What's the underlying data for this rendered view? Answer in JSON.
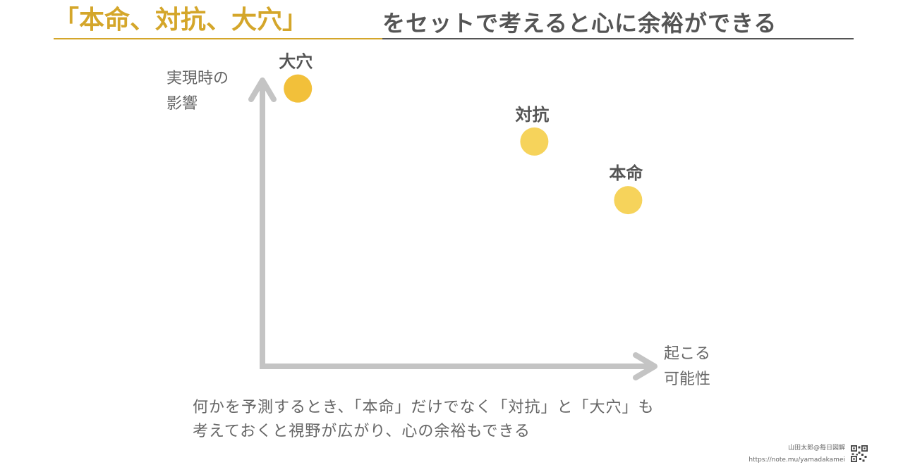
{
  "title": {
    "highlight": "「本命、対抗、大穴」",
    "rest": "をセットで考えると心に余裕ができる"
  },
  "axes": {
    "y_label_lines": [
      "実現時の",
      "影響"
    ],
    "x_label_lines": [
      "起こる",
      "可能性"
    ]
  },
  "chart_data": {
    "type": "scatter",
    "xlabel": "起こる可能性",
    "ylabel": "実現時の影響",
    "points": [
      {
        "label": "大穴",
        "x": 0.07,
        "y": 0.92,
        "color": "#f2c03a"
      },
      {
        "label": "対抗",
        "x": 0.7,
        "y": 0.73,
        "color": "#f6d35b"
      },
      {
        "label": "本命",
        "x": 0.95,
        "y": 0.52,
        "color": "#f6d35b"
      }
    ],
    "xlim": [
      0,
      1
    ],
    "ylim": [
      0,
      1
    ],
    "grid": false
  },
  "caption_lines": [
    "何かを予測するとき、「本命」だけでなく「対抗」と「大穴」も",
    "考えておくと視野が広がり、心の余裕もできる"
  ],
  "credit": {
    "author": "山田太郎@毎日図解",
    "url": "https://note.mu/yamadakamei"
  },
  "colors": {
    "accent": "#d4a62a",
    "text": "#555555",
    "axis": "#c4c4c4"
  },
  "icons": {
    "qr": "qr-code-icon"
  }
}
